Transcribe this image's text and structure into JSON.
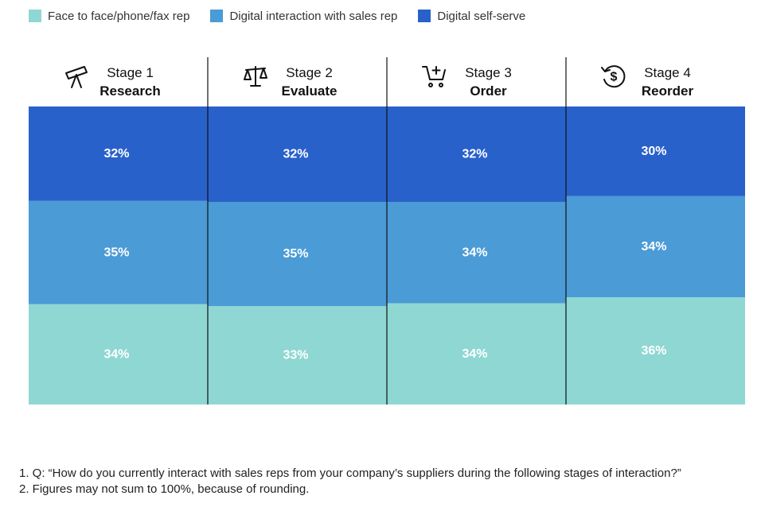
{
  "colors": {
    "face_to_face": "#8fd7d3",
    "digital_rep": "#4a9bd6",
    "self_serve": "#2961cb"
  },
  "chart_data": {
    "type": "bar",
    "stacked": true,
    "normalized_percent": true,
    "legend_position": "top-left",
    "categories": [
      {
        "stage": "Stage 1",
        "name": "Research",
        "icon": "telescope-icon"
      },
      {
        "stage": "Stage 2",
        "name": "Evaluate",
        "icon": "scales-icon"
      },
      {
        "stage": "Stage 3",
        "name": "Order",
        "icon": "cart-add-icon"
      },
      {
        "stage": "Stage 4",
        "name": "Reorder",
        "icon": "dollar-refresh-icon"
      }
    ],
    "series": [
      {
        "name": "Face to face/phone/fax rep",
        "color": "#8fd7d3",
        "values": [
          34,
          33,
          34,
          36
        ],
        "labels": [
          "34%",
          "33%",
          "34%",
          "36%"
        ]
      },
      {
        "name": "Digital interaction with sales rep",
        "color": "#4a9bd6",
        "values": [
          35,
          35,
          34,
          34
        ],
        "labels": [
          "35%",
          "35%",
          "34%",
          "34%"
        ]
      },
      {
        "name": "Digital self-serve",
        "color": "#2961cb",
        "values": [
          32,
          32,
          32,
          30
        ],
        "labels": [
          "32%",
          "32%",
          "32%",
          "30%"
        ]
      }
    ]
  },
  "footnotes": [
    "1. Q: “How do you currently interact with sales reps from your company’s suppliers during the following stages of interaction?”",
    "2. Figures may not sum to 100%, because of rounding."
  ]
}
